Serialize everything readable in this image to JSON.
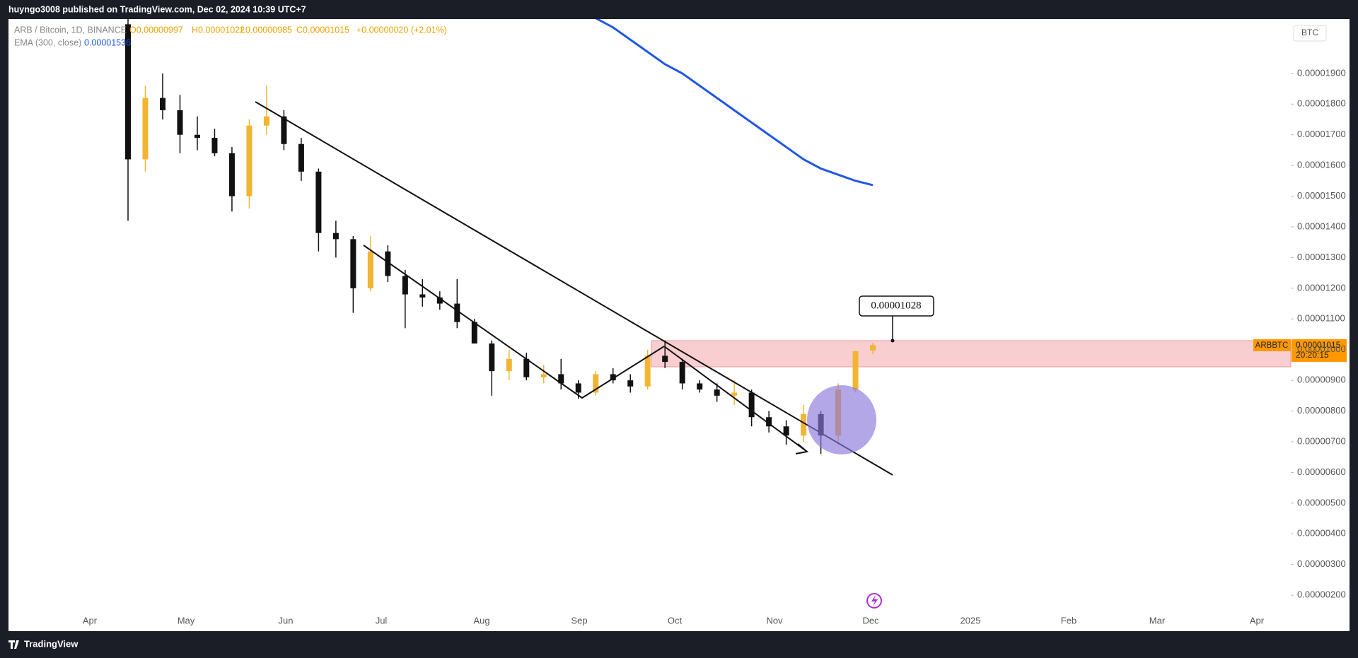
{
  "header": {
    "text": "huyngo3008 published on TradingView.com, Dec 02, 2024 10:39 UTC+7"
  },
  "legend": {
    "symbol": "ARB / Bitcoin, 1D, BINANCE",
    "open": "O0.00000997",
    "high": "H0.00001022",
    "low": "L0.00000985",
    "close": "C0.00001015",
    "change": "+0.00000020 (+2.01%)",
    "ema_name": "EMA (300, close)",
    "ema_value": "0.00001536"
  },
  "currency": "BTC",
  "price_label": {
    "ticker": "ARBBTC",
    "price": "0.00001015",
    "countdown": "20:20:15"
  },
  "annotation": "0.00001028",
  "footer": "TradingView",
  "chart_data": {
    "type": "candlestick",
    "xaxis_labels": [
      "Apr",
      "May",
      "Jun",
      "Jul",
      "Aug",
      "Sep",
      "Oct",
      "Nov",
      "Dec",
      "2025",
      "Feb",
      "Mar",
      "Apr"
    ],
    "ylim": [
      1.45e-06,
      2.077e-05
    ],
    "yticks": [
      {
        "value": 2e-06,
        "label": "0.00000200"
      },
      {
        "value": 3e-06,
        "label": "0.00000300"
      },
      {
        "value": 4e-06,
        "label": "0.00000400"
      },
      {
        "value": 5e-06,
        "label": "0.00000500"
      },
      {
        "value": 6e-06,
        "label": "0.00000600"
      },
      {
        "value": 7e-06,
        "label": "0.00000700"
      },
      {
        "value": 8e-06,
        "label": "0.00000800"
      },
      {
        "value": 9e-06,
        "label": "0.00000900"
      },
      {
        "value": 1e-05,
        "label": "0.00001000"
      },
      {
        "value": 1.1e-05,
        "label": "0.00001100"
      },
      {
        "value": 1.2e-05,
        "label": "0.00001200"
      },
      {
        "value": 1.3e-05,
        "label": "0.00001300"
      },
      {
        "value": 1.4e-05,
        "label": "0.00001400"
      },
      {
        "value": 1.5e-05,
        "label": "0.00001500"
      },
      {
        "value": 1.6e-05,
        "label": "0.00001600"
      },
      {
        "value": 1.7e-05,
        "label": "0.00001700"
      },
      {
        "value": 1.8e-05,
        "label": "0.00001800"
      },
      {
        "value": 1.9e-05,
        "label": "0.00001900"
      }
    ],
    "grid": false,
    "up_color": "#f2b531",
    "down_color": "#111111",
    "open": [
      2.06e-05,
      1.62e-05,
      1.82e-05,
      1.78e-05,
      1.7e-05,
      1.69e-05,
      1.64e-05,
      1.5e-05,
      1.73e-05,
      1.76e-05,
      1.67e-05,
      1.58e-05,
      1.38e-05,
      1.36e-05,
      1.2e-05,
      1.32e-05,
      1.24e-05,
      1.18e-05,
      1.17e-05,
      1.15e-05,
      1.09e-05,
      1.02e-05,
      9.3e-06,
      9.7e-06,
      9.1e-06,
      9.2e-06,
      8.9e-06,
      8.6e-06,
      9.2e-06,
      9e-06,
      8.8e-06,
      9.8e-06,
      9.6e-06,
      8.9e-06,
      8.7e-06,
      8.5e-06,
      8.6e-06,
      7.8e-06,
      7.5e-06,
      7.2e-06,
      7.9e-06,
      7.2e-06,
      8.7e-06,
      9.97e-06
    ],
    "high": [
      2.08e-05,
      1.86e-05,
      1.9e-05,
      1.83e-05,
      1.76e-05,
      1.72e-05,
      1.66e-05,
      1.75e-05,
      1.86e-05,
      1.78e-05,
      1.69e-05,
      1.59e-05,
      1.42e-05,
      1.37e-05,
      1.37e-05,
      1.34e-05,
      1.26e-05,
      1.23e-05,
      1.19e-05,
      1.23e-05,
      1.1e-05,
      1.03e-05,
      1e-05,
      9.9e-06,
      9.5e-06,
      9.7e-06,
      9e-06,
      9.3e-06,
      9.4e-06,
      9.2e-06,
      1e-05,
      1.03e-05,
      9.7e-06,
      9e-06,
      8.9e-06,
      9e-06,
      8.7e-06,
      8e-06,
      7.7e-06,
      8.2e-06,
      8e-06,
      8.9e-06,
      9.96e-06,
      1.022e-05
    ],
    "low": [
      1.42e-05,
      1.58e-05,
      1.75e-05,
      1.64e-05,
      1.65e-05,
      1.63e-05,
      1.45e-05,
      1.46e-05,
      1.7e-05,
      1.65e-05,
      1.55e-05,
      1.32e-05,
      1.3e-05,
      1.12e-05,
      1.19e-05,
      1.22e-05,
      1.07e-05,
      1.14e-05,
      1.13e-05,
      1.07e-05,
      1.03e-05,
      8.5e-06,
      9e-06,
      9e-06,
      8.9e-06,
      8.7e-06,
      8.4e-06,
      8.5e-06,
      8.9e-06,
      8.6e-06,
      8.7e-06,
      9.4e-06,
      8.7e-06,
      8.6e-06,
      8.3e-06,
      8.2e-06,
      7.5e-06,
      7.3e-06,
      6.9e-06,
      7e-06,
      6.6e-06,
      6.9e-06,
      8.6e-06,
      9.85e-06
    ],
    "close": [
      1.62e-05,
      1.82e-05,
      1.78e-05,
      1.7e-05,
      1.69e-05,
      1.64e-05,
      1.5e-05,
      1.73e-05,
      1.76e-05,
      1.67e-05,
      1.58e-05,
      1.38e-05,
      1.36e-05,
      1.2e-05,
      1.32e-05,
      1.24e-05,
      1.18e-05,
      1.17e-05,
      1.15e-05,
      1.09e-05,
      1.02e-05,
      9.3e-06,
      9.7e-06,
      9.1e-06,
      9.2e-06,
      8.9e-06,
      8.6e-06,
      9.2e-06,
      9e-06,
      8.8e-06,
      9.8e-06,
      9.6e-06,
      8.9e-06,
      8.7e-06,
      8.5e-06,
      8.6e-06,
      7.8e-06,
      7.5e-06,
      7.2e-06,
      7.9e-06,
      7.2e-06,
      8.7e-06,
      9.95e-06,
      1.015e-05
    ],
    "ema": {
      "color": "#1f57e8",
      "values": [
        null,
        null,
        null,
        null,
        null,
        null,
        null,
        null,
        null,
        null,
        null,
        null,
        null,
        null,
        null,
        null,
        null,
        null,
        null,
        null,
        null,
        null,
        null,
        null,
        null,
        null,
        null,
        2.08e-05,
        2.05e-05,
        2.01e-05,
        1.97e-05,
        1.93e-05,
        1.9e-05,
        1.86e-05,
        1.82e-05,
        1.78e-05,
        1.74e-05,
        1.7e-05,
        1.66e-05,
        1.62e-05,
        1.59e-05,
        1.57e-05,
        1.55e-05,
        1.536e-05
      ]
    }
  }
}
